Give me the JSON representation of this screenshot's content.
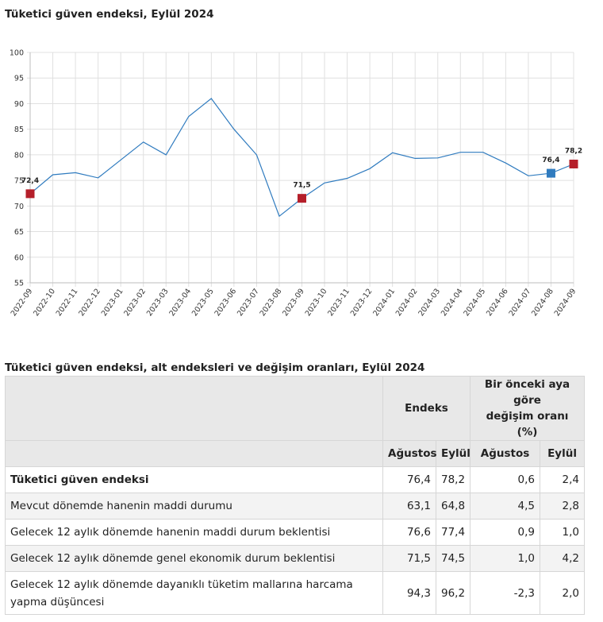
{
  "chart_title": "Tüketici güven endeksi, Eylül 2024",
  "table_title": "Tüketici güven endeksi, alt endeksleri ve değişim oranları, Eylül 2024",
  "colors": {
    "line": "#2f7bbf",
    "marker_red": "#b51f2a",
    "marker_blue": "#2f7bbf",
    "grid": "#e0e0e0"
  },
  "chart_data": {
    "type": "line",
    "title": "Tüketici güven endeksi, Eylül 2024",
    "xlabel": "",
    "ylabel": "",
    "ylim": [
      55,
      100
    ],
    "yticks": [
      55,
      60,
      65,
      70,
      75,
      80,
      85,
      90,
      95,
      100
    ],
    "grid": true,
    "categories": [
      "2022-09",
      "2022-10",
      "2022-11",
      "2022-12",
      "2023-01",
      "2023-02",
      "2023-03",
      "2023-04",
      "2023-05",
      "2023-06",
      "2023-07",
      "2023-08",
      "2023-09",
      "2023-10",
      "2023-11",
      "2023-12",
      "2024-01",
      "2024-02",
      "2024-03",
      "2024-04",
      "2024-05",
      "2024-06",
      "2024-07",
      "2024-08",
      "2024-09"
    ],
    "series": [
      {
        "values": [
          72.4,
          76.1,
          76.5,
          75.5,
          79.0,
          82.5,
          80.0,
          87.5,
          91.0,
          85.0,
          80.0,
          68.0,
          71.5,
          74.5,
          75.4,
          77.3,
          80.4,
          79.3,
          79.4,
          80.5,
          80.5,
          78.4,
          75.9,
          76.4,
          78.2
        ]
      }
    ],
    "annotations": [
      {
        "index": 0,
        "label": "72,4",
        "color": "red"
      },
      {
        "index": 12,
        "label": "71,5",
        "color": "red"
      },
      {
        "index": 23,
        "label": "76,4",
        "color": "blue"
      },
      {
        "index": 24,
        "label": "78,2",
        "color": "red"
      }
    ]
  },
  "table": {
    "header_endeks": "Endeks",
    "header_change_line1": "Bir önceki aya",
    "header_change_line2": "göre",
    "header_change_line3": "değişim oranı (%)",
    "sub_cols": [
      "Ağustos",
      "Eylül",
      "Ağustos",
      "Eylül"
    ],
    "rows": [
      {
        "label": "Tüketici güven endeksi",
        "values": [
          "76,4",
          "78,2",
          "0,6",
          "2,4"
        ]
      },
      {
        "label": "Mevcut dönemde hanenin maddi durumu",
        "values": [
          "63,1",
          "64,8",
          "4,5",
          "2,8"
        ]
      },
      {
        "label": "Gelecek 12 aylık dönemde hanenin maddi durum beklentisi",
        "values": [
          "76,6",
          "77,4",
          "0,9",
          "1,0"
        ]
      },
      {
        "label": "Gelecek 12 aylık dönemde genel ekonomik durum beklentisi",
        "values": [
          "71,5",
          "74,5",
          "1,0",
          "4,2"
        ]
      },
      {
        "label": "Gelecek 12 aylık dönemde dayanıklı tüketim mallarına harcama yapma düşüncesi",
        "values": [
          "94,3",
          "96,2",
          "-2,3",
          "2,0"
        ]
      }
    ]
  }
}
